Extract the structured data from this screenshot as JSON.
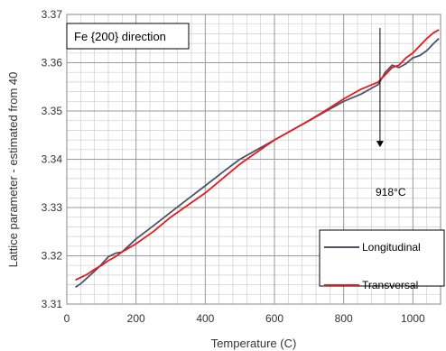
{
  "chart_data": {
    "type": "line",
    "title": "",
    "xlabel": "Temperature (C)",
    "ylabel": "Lattice parameter - estimated from 40",
    "xlim": [
      0,
      1080
    ],
    "ylim": [
      3.31,
      3.37
    ],
    "xticks": [
      0,
      200,
      400,
      600,
      800,
      1000
    ],
    "yticks": [
      3.31,
      3.32,
      3.33,
      3.34,
      3.35,
      3.36,
      3.37
    ],
    "xtick_labels": [
      "0",
      "200",
      "400",
      "600",
      "800",
      "1000"
    ],
    "ytick_labels": [
      "3.31",
      "3.32",
      "3.33",
      "3.34",
      "3.35",
      "3.36",
      "3.37"
    ],
    "grid": true,
    "legend_position": "bottom-right",
    "annotations": [
      {
        "text": "Fe {200} direction",
        "position": "top-left box"
      },
      {
        "text": "918°C",
        "arrow_x": 905,
        "arrow_from_y": 3.3672,
        "arrow_to_y": 3.3425
      }
    ],
    "series": [
      {
        "name": "Longitudinal",
        "color": "#4a5368",
        "x": [
          25,
          40,
          60,
          80,
          100,
          120,
          140,
          160,
          200,
          250,
          300,
          350,
          400,
          450,
          500,
          550,
          600,
          650,
          700,
          750,
          800,
          850,
          900,
          920,
          940,
          960,
          980,
          1000,
          1020,
          1040,
          1060,
          1075
        ],
        "y": [
          3.3135,
          3.3142,
          3.3155,
          3.3168,
          3.3182,
          3.3198,
          3.3205,
          3.3208,
          3.3235,
          3.3262,
          3.329,
          3.3318,
          3.3345,
          3.3373,
          3.34,
          3.342,
          3.344,
          3.346,
          3.348,
          3.35,
          3.352,
          3.3535,
          3.3555,
          3.358,
          3.3595,
          3.359,
          3.3598,
          3.361,
          3.3615,
          3.3625,
          3.364,
          3.365
        ]
      },
      {
        "name": "Transversal",
        "color": "#e8191c",
        "x": [
          25,
          40,
          60,
          80,
          100,
          120,
          140,
          160,
          200,
          250,
          300,
          350,
          400,
          450,
          500,
          550,
          600,
          650,
          700,
          750,
          800,
          850,
          900,
          920,
          940,
          960,
          980,
          1000,
          1020,
          1040,
          1060,
          1075
        ],
        "y": [
          3.315,
          3.3155,
          3.3162,
          3.3172,
          3.318,
          3.319,
          3.3198,
          3.3208,
          3.3225,
          3.325,
          3.328,
          3.3305,
          3.333,
          3.336,
          3.339,
          3.3415,
          3.344,
          3.346,
          3.348,
          3.3502,
          3.3525,
          3.3545,
          3.356,
          3.3575,
          3.359,
          3.3595,
          3.361,
          3.362,
          3.3635,
          3.365,
          3.3662,
          3.3668
        ]
      }
    ]
  }
}
